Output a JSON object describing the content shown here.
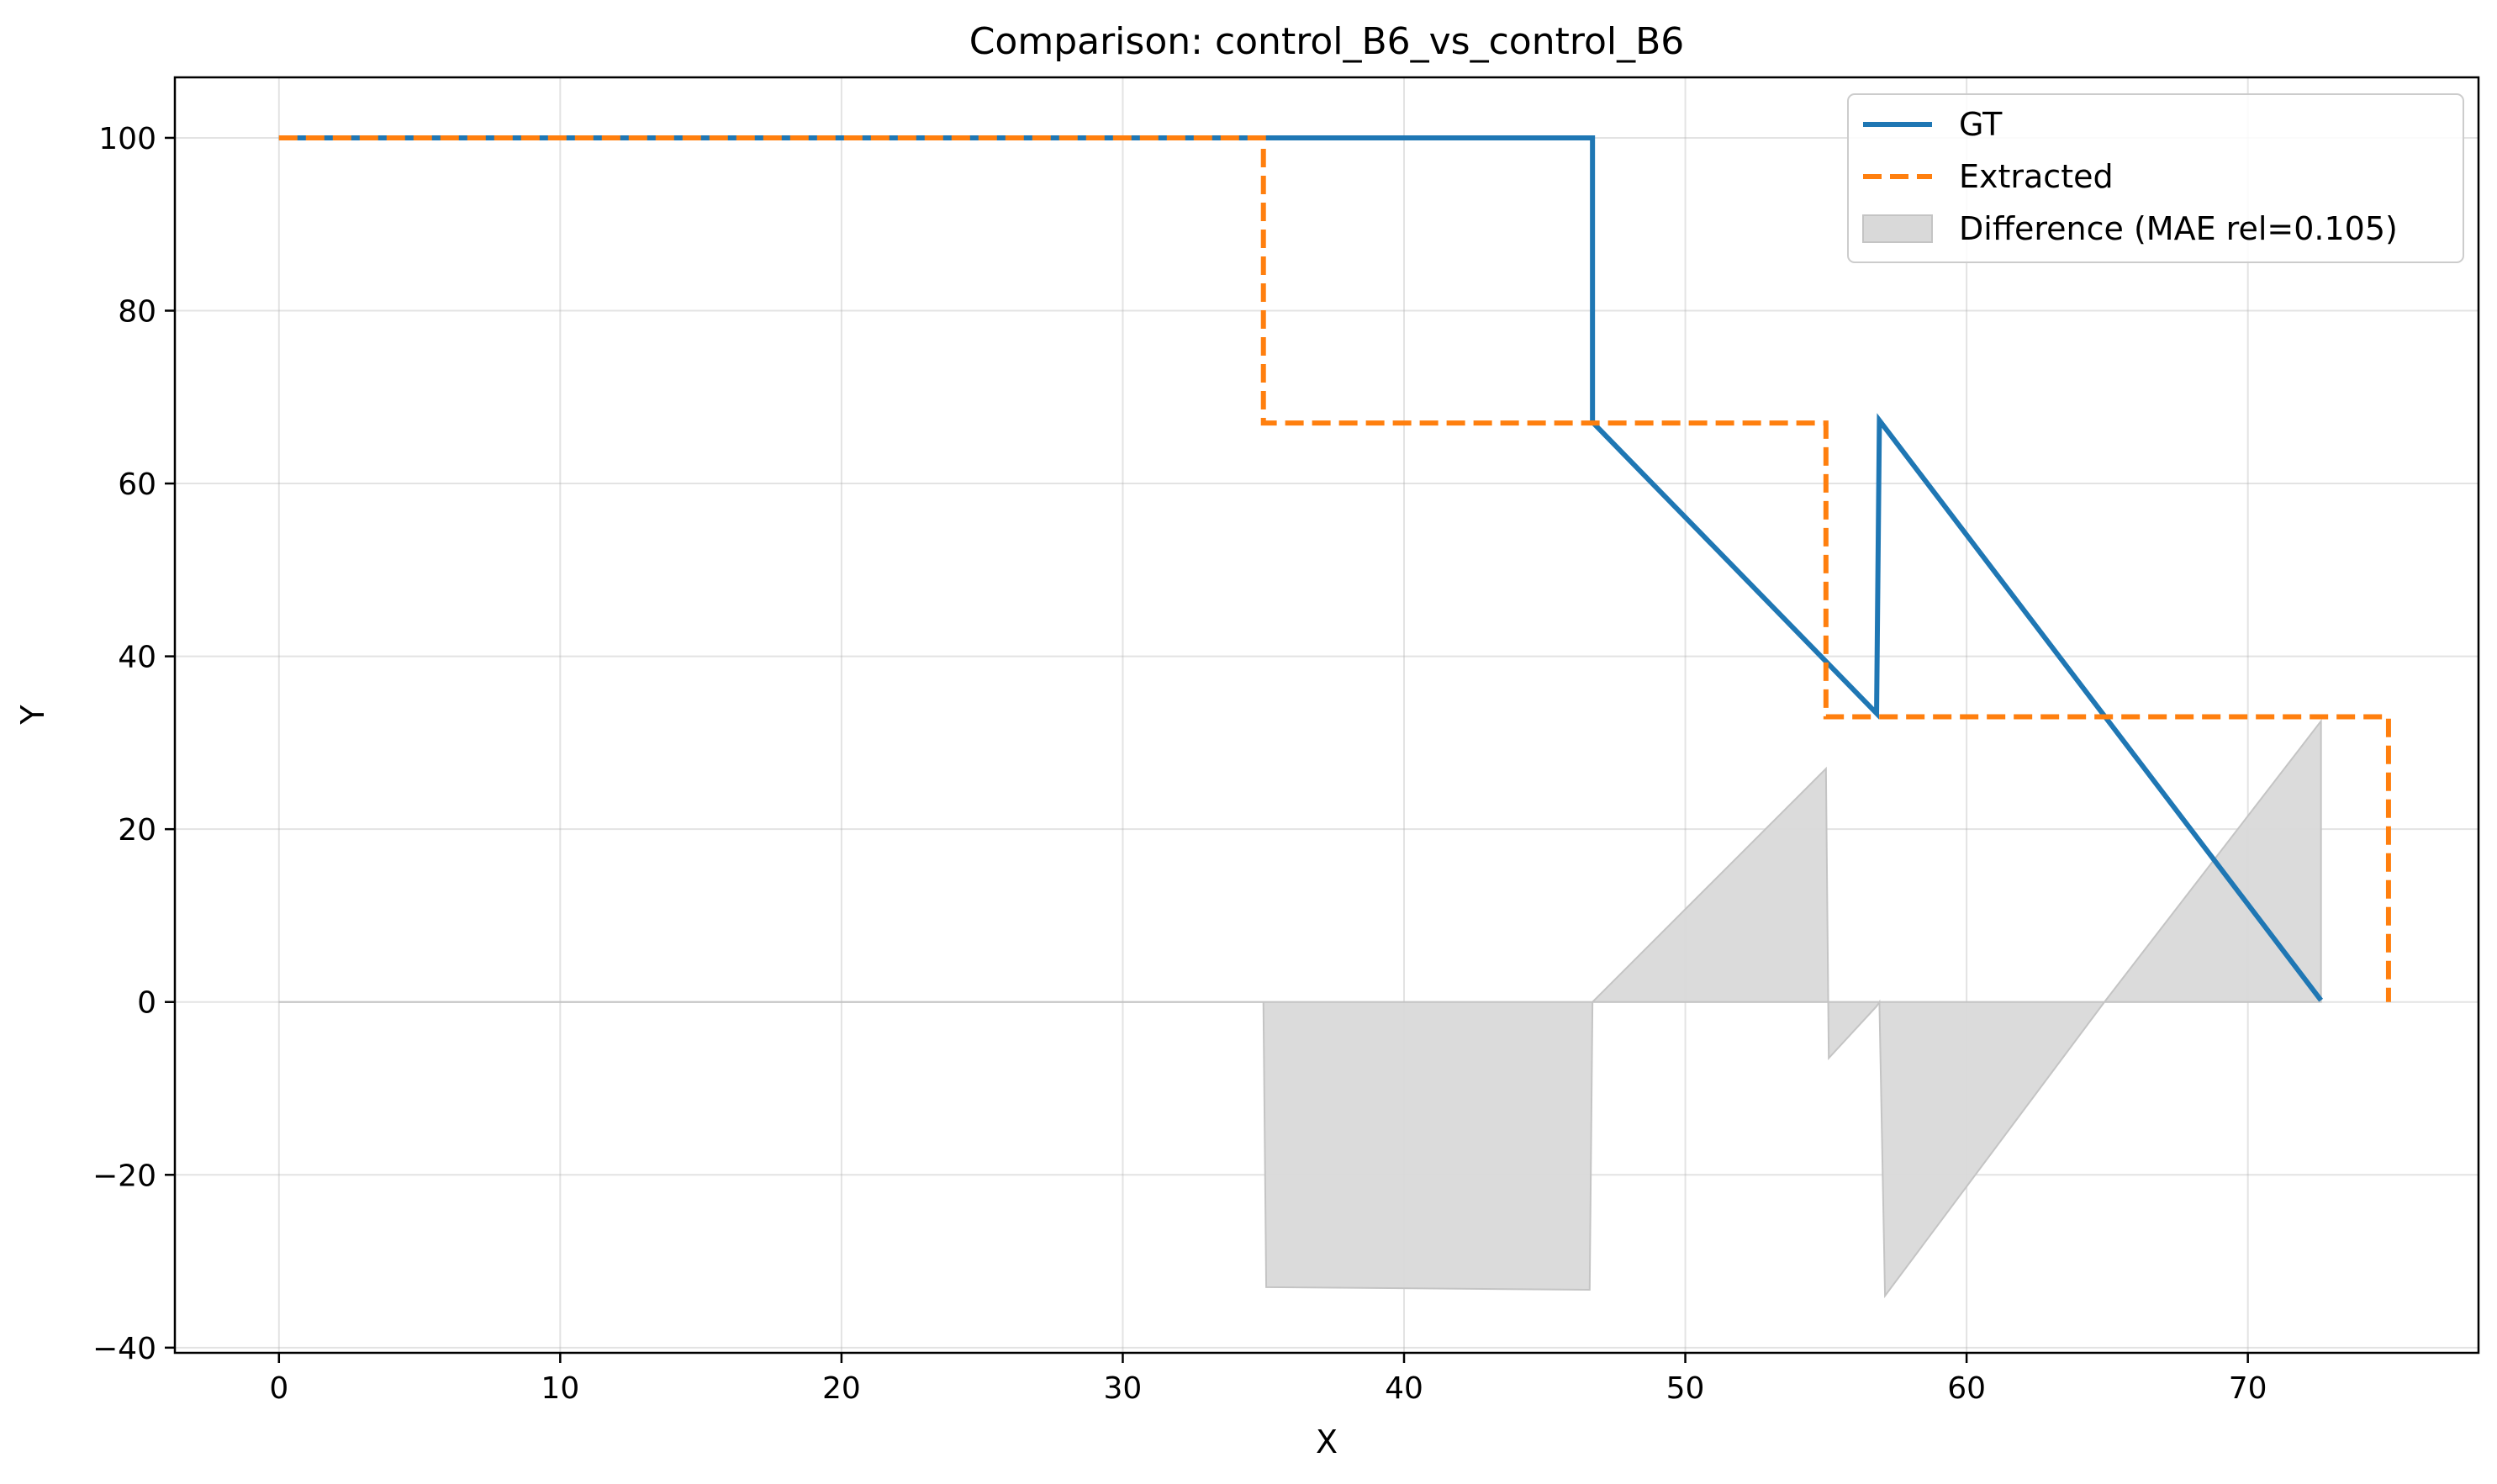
{
  "chart_data": {
    "type": "line",
    "title": "Comparison: control_B6_vs_control_B6",
    "xlabel": "X",
    "ylabel": "Y",
    "xlim": [
      -3.7,
      78.2
    ],
    "ylim": [
      -40.6,
      107
    ],
    "xticks": [
      0,
      10,
      20,
      30,
      40,
      50,
      60,
      70
    ],
    "yticks": [
      -40,
      -20,
      0,
      20,
      40,
      60,
      80,
      100
    ],
    "ytick_labels": [
      "−40",
      "−20",
      "0",
      "20",
      "40",
      "60",
      "80",
      "100"
    ],
    "grid": true,
    "legend_position": "top-right",
    "series": [
      {
        "name": "GT",
        "style": "solid",
        "color": "#1f77b4",
        "x": [
          0,
          46.7,
          46.7,
          56.8,
          56.9,
          72.6
        ],
        "y": [
          100,
          100,
          67.1,
          33.4,
          67.3,
          0.2
        ]
      },
      {
        "name": "Extracted",
        "style": "dashed",
        "color": "#ff7f0e",
        "x": [
          0,
          35,
          35,
          55,
          55,
          75,
          75
        ],
        "y": [
          100,
          100,
          67,
          67,
          33,
          33,
          0
        ]
      }
    ],
    "difference": {
      "name": "Difference (MAE rel=0.105)",
      "color": "#d9d9d9",
      "x": [
        0,
        35,
        35.1,
        46.6,
        46.7,
        55,
        55.1,
        56.8,
        56.9,
        57.1,
        64.9,
        72.6
      ],
      "y": [
        0,
        0,
        -33,
        -33.3,
        0,
        27,
        -6.5,
        -0.5,
        0,
        -34,
        0,
        32.5
      ]
    }
  }
}
